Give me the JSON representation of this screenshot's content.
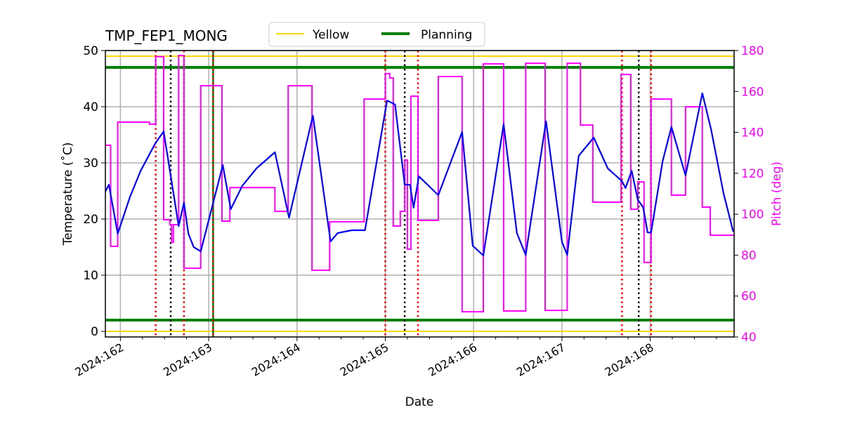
{
  "chart_data": {
    "type": "line",
    "title": "TMP_FEP1_MONG",
    "xlabel": "Date",
    "ylabel": "Temperature ($^\\circ$C)",
    "ylabel_display": "Temperature (˚C)",
    "y2label": "Pitch (deg)",
    "xlim": [
      161.83,
      168.95
    ],
    "ylim": [
      -1,
      50
    ],
    "y2lim": [
      40,
      180
    ],
    "grid": true,
    "legend_placement": "top-center (above plot)",
    "x_ticks": [
      162,
      163,
      164,
      165,
      166,
      167,
      168
    ],
    "x_tick_labels": [
      "2024:162",
      "2024:163",
      "2024:164",
      "2024:165",
      "2024:166",
      "2024:167",
      "2024:168"
    ],
    "y_ticks": [
      0,
      10,
      20,
      30,
      40,
      50
    ],
    "y2_ticks": [
      40,
      60,
      80,
      100,
      120,
      140,
      160,
      180
    ],
    "legend": [
      {
        "name": "Yellow",
        "color": "#FFD700"
      },
      {
        "name": "Planning",
        "color": "#008000"
      }
    ],
    "limits": {
      "yellow": [
        0,
        49
      ],
      "planning": [
        2,
        47
      ]
    },
    "colors": {
      "temperature": "#0000FF",
      "pitch": "#FF00FF",
      "yellow": "#FFD700",
      "planning": "#008000",
      "red_marker": "#FF0000",
      "black_marker": "#000000",
      "grid": "#b0b0b0"
    },
    "temperature": [
      [
        161.83,
        24.9
      ],
      [
        161.87,
        26.1
      ],
      [
        161.97,
        17.4
      ],
      [
        162.11,
        24
      ],
      [
        162.23,
        28.6
      ],
      [
        162.4,
        33.6
      ],
      [
        162.49,
        35.6
      ],
      [
        162.66,
        18.75
      ],
      [
        162.72,
        22.9
      ],
      [
        162.77,
        17.4
      ],
      [
        162.83,
        15
      ],
      [
        162.91,
        14.25
      ],
      [
        163.16,
        29.6
      ],
      [
        163.25,
        21.75
      ],
      [
        163.38,
        25.9
      ],
      [
        163.54,
        29
      ],
      [
        163.75,
        31.9
      ],
      [
        163.91,
        20.25
      ],
      [
        164.18,
        38.4
      ],
      [
        164.38,
        16
      ],
      [
        164.46,
        17.5
      ],
      [
        164.62,
        18
      ],
      [
        164.77,
        18
      ],
      [
        165.02,
        41.1
      ],
      [
        165.11,
        40.4
      ],
      [
        165.22,
        26.1
      ],
      [
        165.28,
        26.1
      ],
      [
        165.32,
        22
      ],
      [
        165.38,
        27.6
      ],
      [
        165.6,
        24.25
      ],
      [
        165.87,
        35.5
      ],
      [
        165.99,
        15.25
      ],
      [
        166.11,
        13.5
      ],
      [
        166.34,
        36.9
      ],
      [
        166.49,
        17.5
      ],
      [
        166.59,
        13.6
      ],
      [
        166.82,
        37.4
      ],
      [
        167.0,
        16
      ],
      [
        167.06,
        13.6
      ],
      [
        167.19,
        31.25
      ],
      [
        167.36,
        34.5
      ],
      [
        167.52,
        29
      ],
      [
        167.68,
        26.75
      ],
      [
        167.72,
        25.5
      ],
      [
        167.79,
        28.6
      ],
      [
        167.86,
        23.4
      ],
      [
        167.92,
        22.1
      ],
      [
        167.97,
        17.6
      ],
      [
        168.01,
        17.6
      ],
      [
        168.14,
        30.25
      ],
      [
        168.24,
        36.4
      ],
      [
        168.4,
        27.75
      ],
      [
        168.59,
        42.4
      ],
      [
        168.69,
        35.9
      ],
      [
        168.83,
        24.6
      ],
      [
        168.94,
        17.75
      ]
    ],
    "pitch_steps": [
      [
        161.83,
        133.7
      ],
      [
        161.89,
        84.3
      ],
      [
        161.97,
        145
      ],
      [
        162.33,
        144
      ],
      [
        162.4,
        177
      ],
      [
        162.49,
        97.3
      ],
      [
        162.56,
        94.9
      ],
      [
        162.58,
        86.3
      ],
      [
        162.6,
        94.9
      ],
      [
        162.66,
        177.6
      ],
      [
        162.72,
        73.6
      ],
      [
        162.91,
        162.8
      ],
      [
        163.15,
        96.6
      ],
      [
        163.24,
        113
      ],
      [
        163.75,
        101.4
      ],
      [
        163.9,
        162.8
      ],
      [
        164.17,
        72.6
      ],
      [
        164.37,
        96.3
      ],
      [
        164.76,
        156.3
      ],
      [
        165.0,
        168.7
      ],
      [
        165.05,
        166.6
      ],
      [
        165.09,
        94.2
      ],
      [
        165.17,
        101.4
      ],
      [
        165.22,
        126.5
      ],
      [
        165.25,
        82.9
      ],
      [
        165.29,
        157.7
      ],
      [
        165.37,
        97
      ],
      [
        165.6,
        167.3
      ],
      [
        165.87,
        52.3
      ],
      [
        166.11,
        173.5
      ],
      [
        166.34,
        52.7
      ],
      [
        166.59,
        173.8
      ],
      [
        166.81,
        53
      ],
      [
        167.06,
        173.8
      ],
      [
        167.21,
        143.6
      ],
      [
        167.35,
        105.9
      ],
      [
        167.67,
        168.3
      ],
      [
        167.78,
        102.4
      ],
      [
        167.86,
        115.8
      ],
      [
        167.93,
        76.4
      ],
      [
        168.01,
        156.3
      ],
      [
        168.24,
        109.3
      ],
      [
        168.4,
        152.5
      ],
      [
        168.59,
        103.5
      ],
      [
        168.68,
        89.7
      ],
      [
        168.95,
        89.7
      ]
    ],
    "red_dotted_markers": [
      162.4,
      162.72,
      163.05,
      165.0,
      165.37,
      167.68,
      168.01
    ],
    "black_dotted_markers": [
      162.57,
      165.22,
      167.87
    ],
    "green_vertical_markers": [
      163.05
    ]
  }
}
